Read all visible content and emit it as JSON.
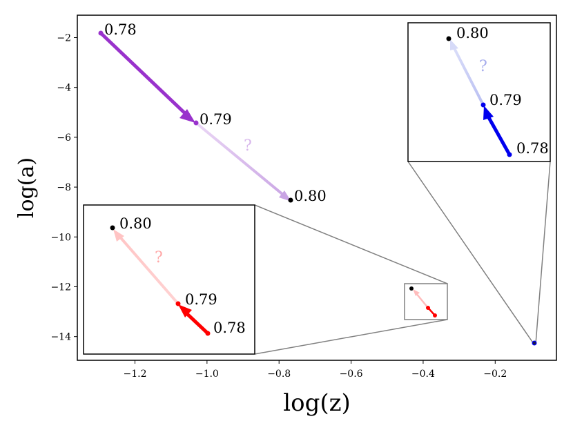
{
  "chart_data": {
    "type": "scatter",
    "xlabel": "log(z)",
    "ylabel": "log(a)",
    "xlim": [
      -1.36,
      -0.03
    ],
    "ylim": [
      -14.95,
      -1.1
    ],
    "grid": false,
    "xticks": [
      {
        "value": -1.2,
        "label": "−1.2"
      },
      {
        "value": -1.0,
        "label": "−1.0"
      },
      {
        "value": -0.8,
        "label": "−0.8"
      },
      {
        "value": -0.6,
        "label": "−0.6"
      },
      {
        "value": -0.4,
        "label": "−0.4"
      },
      {
        "value": -0.2,
        "label": "−0.2"
      }
    ],
    "yticks": [
      {
        "value": -2,
        "label": "−2"
      },
      {
        "value": -4,
        "label": "−4"
      },
      {
        "value": -6,
        "label": "−6"
      },
      {
        "value": -8,
        "label": "−8"
      },
      {
        "value": -10,
        "label": "−10"
      },
      {
        "value": -12,
        "label": "−12"
      },
      {
        "value": -14,
        "label": "−14"
      }
    ],
    "question_mark": "?",
    "series": [
      {
        "color": "#9932cc",
        "fade_color": "#e3c9f0",
        "points": [
          {
            "x": -1.304,
            "y": -1.73,
            "label": "0.78"
          },
          {
            "x": -1.04,
            "y": -5.35,
            "label": "0.79"
          },
          {
            "x": -0.772,
            "y": -8.45,
            "label": "0.80"
          }
        ]
      },
      {
        "color": "#ff0000",
        "fade_color": "#ffcccc",
        "points": [
          {
            "x": -0.362,
            "y": -13.08,
            "label": "0.78"
          },
          {
            "x": -0.383,
            "y": -12.78,
            "label": "0.79"
          },
          {
            "x": -0.43,
            "y": -12.03,
            "label": "0.80"
          }
        ]
      },
      {
        "color": "#0000ee",
        "fade_color": "#c8ccf5",
        "points": [
          {
            "x": -0.0794,
            "y": -14.28,
            "label": "0.78"
          },
          {
            "x": -0.0802,
            "y": -14.27,
            "label": "0.79"
          },
          {
            "x": -0.0806,
            "y": -14.26,
            "label": "0.80"
          }
        ]
      }
    ]
  }
}
